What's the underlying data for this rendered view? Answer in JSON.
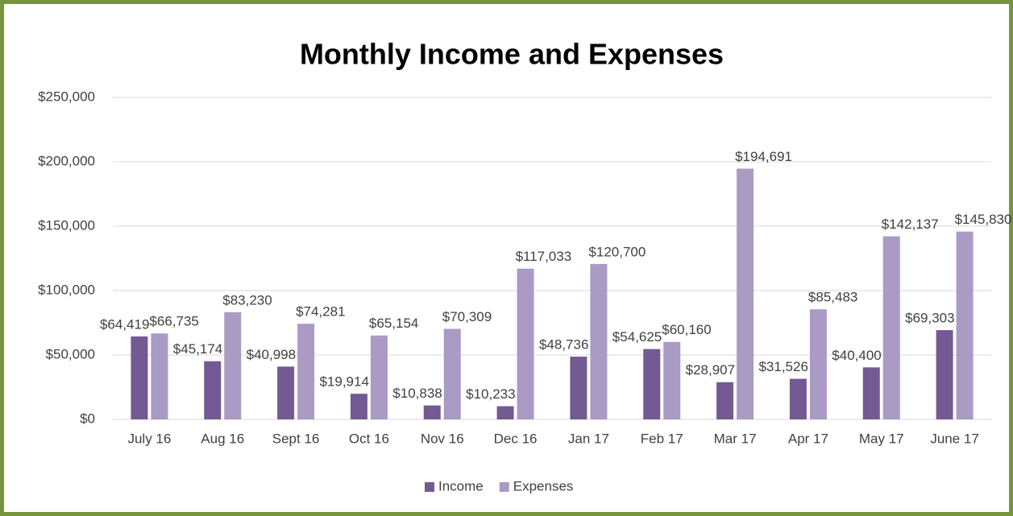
{
  "chart_data": {
    "type": "bar",
    "title": "Monthly Income and Expenses",
    "categories": [
      "July 16",
      "Aug 16",
      "Sept 16",
      "Oct 16",
      "Nov 16",
      "Dec 16",
      "Jan 17",
      "Feb 17",
      "Mar 17",
      "Apr 17",
      "May 17",
      "June 17"
    ],
    "series": [
      {
        "name": "Income",
        "color": "#735a92",
        "values": [
          64419,
          45174,
          40998,
          19914,
          10838,
          10233,
          48736,
          54625,
          28907,
          31526,
          40400,
          69303
        ],
        "value_labels": [
          "$64,419",
          "$45,174",
          "$40,998",
          "$19,914",
          "$10,838",
          "$10,233",
          "$48,736",
          "$54,625",
          "$28,907",
          "$31,526",
          "$40,400",
          "$69,303"
        ]
      },
      {
        "name": "Expenses",
        "color": "#a99bc3",
        "values": [
          66735,
          83230,
          74281,
          65154,
          70309,
          117033,
          120700,
          60160,
          194691,
          85483,
          142137,
          145830
        ],
        "value_labels": [
          "$66,735",
          "$83,230",
          "$74,281",
          "$65,154",
          "$70,309",
          "$117,033",
          "$120,700",
          "$60,160",
          "$194,691",
          "$85,483",
          "$142,137",
          "$145,830"
        ]
      }
    ],
    "ylim": [
      0,
      250000
    ],
    "yticks": [
      {
        "value": 0,
        "label": "$0"
      },
      {
        "value": 50000,
        "label": "$50,000"
      },
      {
        "value": 100000,
        "label": "$100,000"
      },
      {
        "value": 150000,
        "label": "$150,000"
      },
      {
        "value": 200000,
        "label": "$200,000"
      },
      {
        "value": 250000,
        "label": "$250,000"
      }
    ],
    "grid": true,
    "legend": "bottom"
  }
}
